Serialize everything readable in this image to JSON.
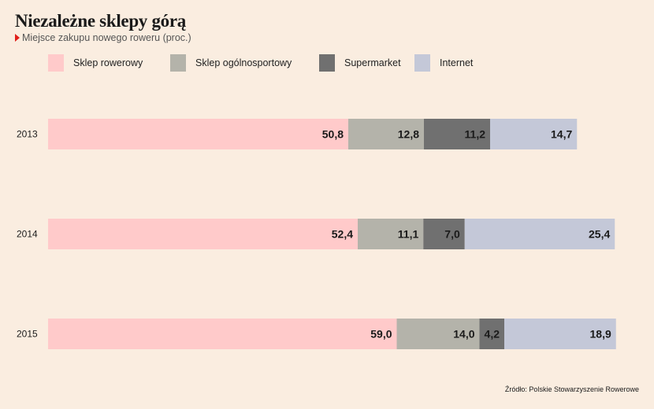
{
  "title": "Niezależne sklepy górą",
  "subtitle": "Miejsce zakupu nowego roweru (proc.)",
  "source": "Źródło: Polskie Stowarzyszenie Rowerowe",
  "colors": {
    "background": "#faede0",
    "accent_marker": "#e0201b",
    "series": [
      "#ffcaca",
      "#b4b3aa",
      "#707070",
      "#c4c8d8"
    ]
  },
  "chart_data": {
    "type": "bar",
    "orientation": "horizontal",
    "stacked": true,
    "categories": [
      "2013",
      "2014",
      "2015"
    ],
    "series": [
      {
        "name": "Sklep rowerowy",
        "values": [
          50.8,
          52.4,
          59.0
        ],
        "labels": [
          "50,8",
          "52,4",
          "59,0"
        ]
      },
      {
        "name": "Sklep ogólnosportowy",
        "values": [
          12.8,
          11.1,
          14.0
        ],
        "labels": [
          "12,8",
          "11,1",
          "14,0"
        ]
      },
      {
        "name": "Supermarket",
        "values": [
          11.2,
          7.0,
          4.2
        ],
        "labels": [
          "11,2",
          "7,0",
          "4,2"
        ]
      },
      {
        "name": "Internet",
        "values": [
          14.7,
          25.4,
          18.9
        ],
        "labels": [
          "14,7",
          "25,4",
          "18,9"
        ]
      }
    ],
    "grid": false,
    "legend_position": "top"
  }
}
